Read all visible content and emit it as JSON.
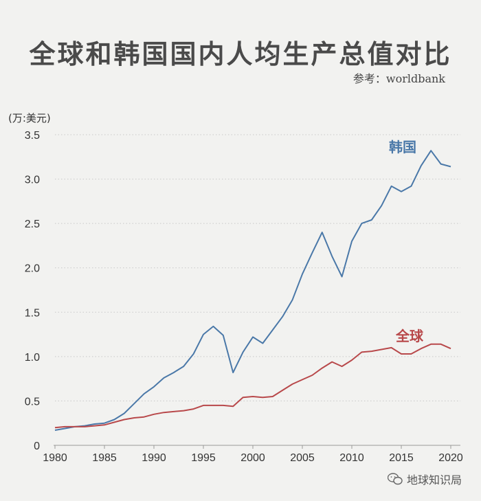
{
  "title": "全球和韩国国内人均生产总值对比",
  "source": "参考：worldbank",
  "watermark": "地球知识局",
  "chart_data": {
    "type": "line",
    "title": "全球和韩国国内人均生产总值对比",
    "ylabel": "(万:美元)",
    "xlabel": "",
    "ylim": [
      0,
      3.5
    ],
    "xlim": [
      1980,
      2020
    ],
    "yticks": [
      "0",
      "0.5",
      "1.0",
      "1.5",
      "2.0",
      "2.5",
      "3.0",
      "3.5"
    ],
    "xticks": [
      "1980",
      "1985",
      "1990",
      "1995",
      "2000",
      "2005",
      "2010",
      "2015",
      "2020"
    ],
    "grid": "horizontal dotted",
    "x": [
      1980,
      1981,
      1982,
      1983,
      1984,
      1985,
      1986,
      1987,
      1988,
      1989,
      1990,
      1991,
      1992,
      1993,
      1994,
      1995,
      1996,
      1997,
      1998,
      1999,
      2000,
      2001,
      2002,
      2003,
      2004,
      2005,
      2006,
      2007,
      2008,
      2009,
      2010,
      2011,
      2012,
      2013,
      2014,
      2015,
      2016,
      2017,
      2018,
      2019,
      2020
    ],
    "series": [
      {
        "name": "韩国",
        "color": "#4a78a8",
        "values": [
          0.17,
          0.19,
          0.21,
          0.22,
          0.24,
          0.25,
          0.29,
          0.36,
          0.47,
          0.58,
          0.66,
          0.76,
          0.82,
          0.89,
          1.03,
          1.25,
          1.34,
          1.24,
          0.82,
          1.05,
          1.22,
          1.15,
          1.3,
          1.45,
          1.64,
          1.93,
          2.17,
          2.4,
          2.13,
          1.9,
          2.3,
          2.5,
          2.54,
          2.7,
          2.92,
          2.86,
          2.92,
          3.15,
          3.32,
          3.17,
          3.14
        ]
      },
      {
        "name": "全球",
        "color": "#b8484a",
        "values": [
          0.2,
          0.21,
          0.21,
          0.21,
          0.22,
          0.23,
          0.26,
          0.29,
          0.31,
          0.32,
          0.35,
          0.37,
          0.38,
          0.39,
          0.41,
          0.45,
          0.45,
          0.45,
          0.44,
          0.54,
          0.55,
          0.54,
          0.55,
          0.62,
          0.69,
          0.74,
          0.79,
          0.87,
          0.94,
          0.89,
          0.96,
          1.05,
          1.06,
          1.08,
          1.1,
          1.03,
          1.03,
          1.09,
          1.14,
          1.14,
          1.09
        ]
      }
    ]
  }
}
